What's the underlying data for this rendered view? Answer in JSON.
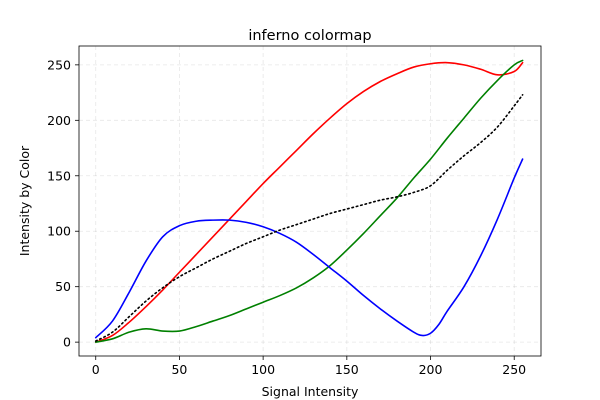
{
  "chart_data": {
    "type": "line",
    "title": "inferno colormap",
    "xlabel": "Signal Intensity",
    "ylabel": "Intensity by Color",
    "xlim": [
      -10,
      266
    ],
    "ylim": [
      -12.5,
      267
    ],
    "xticks": [
      0,
      50,
      100,
      150,
      200,
      250
    ],
    "yticks": [
      0,
      50,
      100,
      150,
      200,
      250
    ],
    "grid": true,
    "legend": "none",
    "series": [
      {
        "color": "#ff0000",
        "style": "solid",
        "x": [
          0,
          10,
          20,
          30,
          40,
          50,
          60,
          70,
          80,
          90,
          100,
          110,
          120,
          130,
          140,
          150,
          160,
          170,
          180,
          190,
          200,
          210,
          220,
          230,
          240,
          250,
          255
        ],
        "y": [
          0,
          6,
          18,
          32,
          47,
          63,
          79,
          95,
          111,
          127,
          143,
          158,
          173,
          188,
          202,
          215,
          226,
          235,
          242,
          248,
          251,
          252,
          250,
          246,
          241,
          244,
          252
        ]
      },
      {
        "color": "#008000",
        "style": "solid",
        "x": [
          0,
          10,
          20,
          30,
          40,
          50,
          60,
          70,
          80,
          90,
          100,
          110,
          120,
          130,
          140,
          150,
          160,
          170,
          180,
          190,
          200,
          210,
          220,
          230,
          240,
          250,
          255
        ],
        "y": [
          0,
          3,
          9,
          12,
          10,
          10,
          14,
          19,
          24,
          30,
          36,
          42,
          49,
          58,
          69,
          83,
          98,
          114,
          130,
          148,
          165,
          184,
          202,
          220,
          236,
          250,
          254
        ]
      },
      {
        "color": "#0000ff",
        "style": "solid",
        "x": [
          0,
          10,
          20,
          30,
          40,
          50,
          60,
          70,
          80,
          90,
          100,
          110,
          120,
          130,
          140,
          150,
          160,
          170,
          180,
          190,
          195,
          200,
          205,
          210,
          220,
          230,
          240,
          250,
          255
        ],
        "y": [
          4,
          19,
          45,
          73,
          95,
          105,
          109,
          110,
          110,
          108,
          104,
          98,
          90,
          79,
          67,
          55,
          42,
          30,
          19,
          9,
          6,
          8,
          16,
          28,
          50,
          78,
          111,
          148,
          165
        ]
      },
      {
        "color": "#000000",
        "style": "dotted",
        "x": [
          0,
          10,
          20,
          30,
          40,
          50,
          60,
          70,
          80,
          90,
          100,
          110,
          120,
          130,
          140,
          150,
          160,
          170,
          180,
          190,
          200,
          210,
          220,
          230,
          240,
          250,
          255
        ],
        "y": [
          1,
          9,
          23,
          37,
          49,
          59,
          67,
          75,
          82,
          89,
          95,
          101,
          106,
          111,
          116,
          120,
          124,
          128,
          131,
          135,
          141,
          155,
          168,
          180,
          194,
          213,
          223
        ]
      }
    ]
  }
}
